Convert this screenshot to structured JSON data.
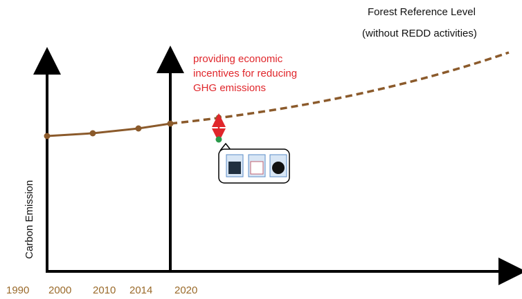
{
  "reference": {
    "title": "Forest Reference Level",
    "subtitle": "(without REDD activities)"
  },
  "annotation": {
    "lines": [
      "providing economic",
      "incentives for reducing",
      "GHG emissions"
    ]
  },
  "y_axis": {
    "label": "Carbon Emission"
  },
  "x_axis": {
    "labels": [
      "1990",
      "2000",
      "2010",
      "2014",
      "2020"
    ]
  }
}
